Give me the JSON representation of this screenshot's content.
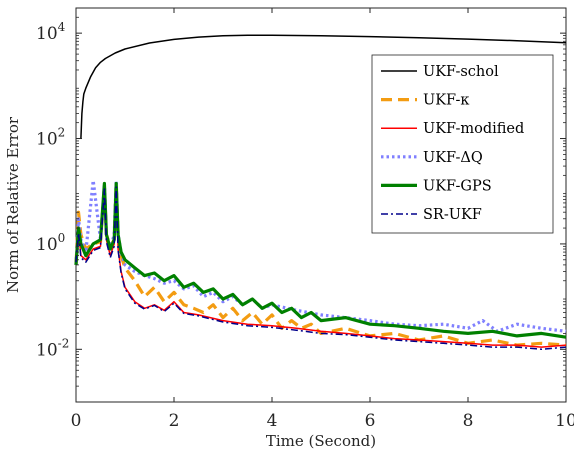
{
  "chart_data": {
    "type": "line",
    "title": "",
    "xlabel": "Time (Second)",
    "ylabel": "Norm of Relative Error",
    "xlim": [
      0,
      10
    ],
    "ylim": [
      0.001,
      30000
    ],
    "yscale": "log",
    "grid": false,
    "legend_position": "top-right",
    "x_ticks": [
      0,
      2,
      4,
      6,
      8,
      10
    ],
    "x_tick_labels": [
      "0",
      "2",
      "4",
      "6",
      "8",
      "10"
    ],
    "y_ticks": [
      0.01,
      1,
      100,
      10000
    ],
    "y_tick_labels": [
      {
        "base": "10",
        "exp": "-2"
      },
      {
        "base": "10",
        "exp": "0"
      },
      {
        "base": "10",
        "exp": "2"
      },
      {
        "base": "10",
        "exp": "4"
      }
    ],
    "series": [
      {
        "name": "UKF-schol",
        "color": "#000000",
        "style": "solid",
        "x": [
          0.1,
          0.12,
          0.14,
          0.16,
          0.2,
          0.3,
          0.4,
          0.5,
          0.6,
          0.8,
          1.0,
          1.5,
          2.0,
          2.5,
          3.0,
          3.5,
          4.0,
          5.0,
          6.0,
          7.0,
          8.0,
          9.0,
          10.0
        ],
        "values": [
          100,
          300,
          500,
          700,
          900,
          1500,
          2200,
          2800,
          3300,
          4200,
          5000,
          6500,
          7600,
          8400,
          8900,
          9100,
          9100,
          8900,
          8600,
          8200,
          7700,
          7200,
          6600
        ]
      },
      {
        "name": "UKF-κ",
        "color": "#F39C12",
        "style": "dashed",
        "x": [
          0,
          0.05,
          0.1,
          0.2,
          0.35,
          0.5,
          0.58,
          0.62,
          0.7,
          0.78,
          0.82,
          0.86,
          0.92,
          1.0,
          1.2,
          1.4,
          1.6,
          1.8,
          2.0,
          2.2,
          2.4,
          2.6,
          2.8,
          3.0,
          3.2,
          3.4,
          3.6,
          3.8,
          4.0,
          4.2,
          4.4,
          4.6,
          4.8,
          5.0,
          5.5,
          6.0,
          6.5,
          7.0,
          7.5,
          8.0,
          8.5,
          9.0,
          9.5,
          10.0
        ],
        "values": [
          0.4,
          4,
          1.5,
          0.8,
          1.0,
          1.1,
          12,
          1.5,
          0.9,
          1.2,
          14,
          1.5,
          0.6,
          0.35,
          0.2,
          0.1,
          0.15,
          0.08,
          0.12,
          0.07,
          0.06,
          0.05,
          0.07,
          0.04,
          0.06,
          0.035,
          0.05,
          0.03,
          0.045,
          0.025,
          0.035,
          0.025,
          0.03,
          0.02,
          0.025,
          0.018,
          0.02,
          0.015,
          0.018,
          0.013,
          0.015,
          0.012,
          0.013,
          0.012
        ]
      },
      {
        "name": "UKF-modified",
        "color": "#FF0000",
        "style": "solid",
        "x": [
          0,
          0.05,
          0.1,
          0.2,
          0.35,
          0.5,
          0.58,
          0.62,
          0.7,
          0.78,
          0.82,
          0.86,
          0.92,
          1.0,
          1.2,
          1.4,
          1.6,
          1.8,
          2.0,
          2.2,
          2.5,
          3.0,
          3.5,
          4.0,
          4.5,
          5.0,
          5.5,
          6.0,
          6.5,
          7.0,
          7.5,
          8.0,
          8.5,
          9.0,
          9.5,
          10.0
        ],
        "values": [
          0.5,
          1.8,
          0.6,
          0.5,
          0.8,
          0.9,
          12,
          1.2,
          0.6,
          1.0,
          13,
          0.8,
          0.3,
          0.15,
          0.08,
          0.06,
          0.07,
          0.055,
          0.08,
          0.05,
          0.045,
          0.035,
          0.03,
          0.028,
          0.025,
          0.022,
          0.02,
          0.018,
          0.016,
          0.015,
          0.014,
          0.013,
          0.012,
          0.012,
          0.011,
          0.012
        ]
      },
      {
        "name": "UKF-ΔQ",
        "color": "#8080FF",
        "style": "dotted",
        "x": [
          0,
          0.05,
          0.1,
          0.2,
          0.35,
          0.5,
          0.58,
          0.62,
          0.7,
          0.78,
          0.82,
          0.86,
          0.92,
          1.0,
          1.2,
          1.4,
          1.6,
          1.8,
          2.0,
          2.2,
          2.4,
          2.6,
          2.8,
          3.0,
          3.2,
          3.4,
          3.6,
          3.8,
          4.0,
          4.5,
          5.0,
          5.5,
          6.0,
          6.5,
          7.0,
          7.5,
          8.0,
          8.3,
          8.6,
          9.0,
          9.5,
          10.0
        ],
        "values": [
          0.4,
          3,
          1.2,
          0.7,
          16,
          1.2,
          13,
          1.5,
          0.8,
          1.5,
          16,
          1.5,
          0.7,
          0.4,
          0.3,
          0.25,
          0.22,
          0.18,
          0.2,
          0.14,
          0.16,
          0.1,
          0.12,
          0.08,
          0.1,
          0.07,
          0.09,
          0.06,
          0.07,
          0.055,
          0.045,
          0.04,
          0.035,
          0.03,
          0.028,
          0.03,
          0.025,
          0.035,
          0.022,
          0.03,
          0.025,
          0.022
        ]
      },
      {
        "name": "UKF-GPS",
        "color": "#008000",
        "style": "solid",
        "x": [
          0,
          0.05,
          0.1,
          0.2,
          0.35,
          0.5,
          0.58,
          0.62,
          0.7,
          0.78,
          0.82,
          0.86,
          0.92,
          1.0,
          1.2,
          1.4,
          1.6,
          1.8,
          2.0,
          2.2,
          2.4,
          2.6,
          2.8,
          3.0,
          3.2,
          3.4,
          3.6,
          3.8,
          4.0,
          4.2,
          4.4,
          4.6,
          4.8,
          5.0,
          5.5,
          6.0,
          6.5,
          7.0,
          7.5,
          8.0,
          8.5,
          9.0,
          9.5,
          10.0
        ],
        "values": [
          0.4,
          2,
          1.0,
          0.6,
          1.0,
          1.2,
          14,
          1.5,
          0.8,
          1.2,
          14,
          1.5,
          0.7,
          0.5,
          0.35,
          0.25,
          0.28,
          0.2,
          0.25,
          0.15,
          0.18,
          0.12,
          0.14,
          0.09,
          0.11,
          0.07,
          0.09,
          0.06,
          0.075,
          0.05,
          0.06,
          0.04,
          0.05,
          0.035,
          0.04,
          0.03,
          0.028,
          0.025,
          0.022,
          0.02,
          0.022,
          0.018,
          0.02,
          0.017
        ]
      },
      {
        "name": "SR-UKF",
        "color": "#00008B",
        "style": "dashdot",
        "x": [
          0,
          0.05,
          0.1,
          0.2,
          0.35,
          0.5,
          0.58,
          0.62,
          0.7,
          0.78,
          0.82,
          0.86,
          0.92,
          1.0,
          1.2,
          1.4,
          1.6,
          1.8,
          2.0,
          2.2,
          2.5,
          3.0,
          3.5,
          4.0,
          4.5,
          5.0,
          5.5,
          6.0,
          6.5,
          7.0,
          7.5,
          8.0,
          8.5,
          9.0,
          9.5,
          10.0
        ],
        "values": [
          0.45,
          1.6,
          0.55,
          0.45,
          0.75,
          0.85,
          11,
          1.1,
          0.55,
          0.9,
          12,
          0.75,
          0.28,
          0.14,
          0.075,
          0.058,
          0.068,
          0.052,
          0.075,
          0.048,
          0.043,
          0.033,
          0.028,
          0.026,
          0.023,
          0.02,
          0.019,
          0.017,
          0.015,
          0.014,
          0.013,
          0.012,
          0.011,
          0.011,
          0.01,
          0.011
        ]
      }
    ]
  }
}
